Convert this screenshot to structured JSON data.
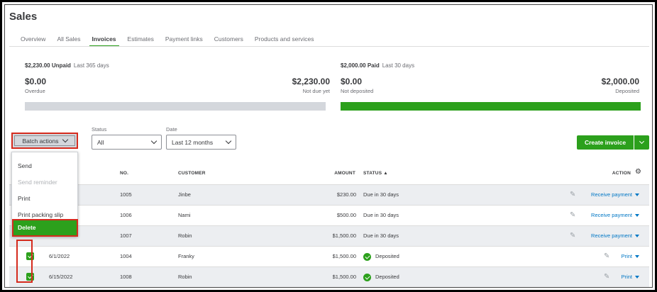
{
  "page": {
    "title": "Sales"
  },
  "tabs": [
    {
      "label": "Overview",
      "active": false
    },
    {
      "label": "All Sales",
      "active": false
    },
    {
      "label": "Invoices",
      "active": true
    },
    {
      "label": "Estimates",
      "active": false
    },
    {
      "label": "Payment links",
      "active": false
    },
    {
      "label": "Customers",
      "active": false
    },
    {
      "label": "Products and services",
      "active": false
    }
  ],
  "unpaid": {
    "amount_label": "$2,230.00 Unpaid",
    "period": "Last 365 days",
    "overdue_amount": "$0.00",
    "overdue_label": "Overdue",
    "not_due_amount": "$2,230.00",
    "not_due_label": "Not due yet"
  },
  "paid": {
    "amount_label": "$2,000.00 Paid",
    "period": "Last 30 days",
    "not_deposited_amount": "$0.00",
    "not_deposited_label": "Not deposited",
    "deposited_amount": "$2,000.00",
    "deposited_label": "Deposited"
  },
  "filters": {
    "batch_label": "Batch actions",
    "status_label": "Status",
    "status_value": "All",
    "date_label": "Date",
    "date_value": "Last 12 months"
  },
  "create_invoice_label": "Create invoice",
  "batch_menu": [
    {
      "label": "Send",
      "disabled": false
    },
    {
      "label": "Send reminder",
      "disabled": true
    },
    {
      "label": "Print",
      "disabled": false
    },
    {
      "label": "Print packing slip",
      "disabled": false
    },
    {
      "label": "Delete",
      "disabled": false
    }
  ],
  "table": {
    "headers": {
      "no": "NO.",
      "customer": "CUSTOMER",
      "amount": "AMOUNT",
      "status": "STATUS ▲",
      "action": "ACTION"
    },
    "rows": [
      {
        "date": "",
        "no": "1005",
        "customer": "Jinbe",
        "amount": "$230.00",
        "status": "Due in 30 days",
        "action": "Receive payment",
        "checked": false
      },
      {
        "date": "",
        "no": "1006",
        "customer": "Nami",
        "amount": "$500.00",
        "status": "Due in 30 days",
        "action": "Receive payment",
        "checked": false
      },
      {
        "date": "",
        "no": "1007",
        "customer": "Robin",
        "amount": "$1,500.00",
        "status": "Due in 30 days",
        "action": "Receive payment",
        "checked": false
      },
      {
        "date": "6/1/2022",
        "no": "1004",
        "customer": "Franky",
        "amount": "$1,500.00",
        "status": "Deposited",
        "action": "Print",
        "checked": true
      },
      {
        "date": "6/15/2022",
        "no": "1008",
        "customer": "Robin",
        "amount": "$1,500.00",
        "status": "Deposited",
        "action": "Print",
        "checked": true
      }
    ]
  },
  "colors": {
    "accent": "#2ca01c",
    "link": "#0077c5",
    "highlight": "#d52b1e",
    "grey_bar": "#d4d7dc"
  }
}
